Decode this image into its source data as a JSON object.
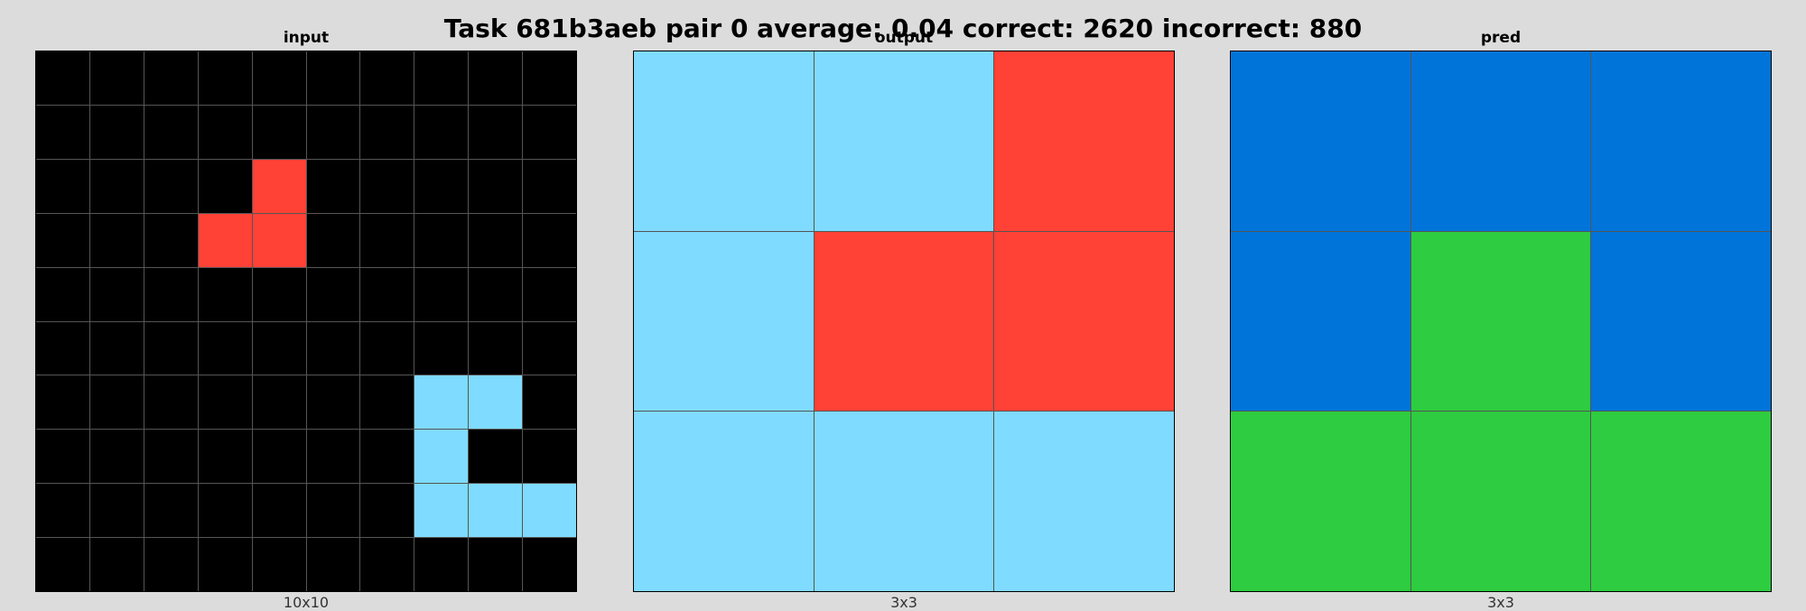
{
  "title": "Task 681b3aeb pair 0 average: 0.04 correct: 2620 incorrect: 880",
  "palette": {
    "0": "#000000",
    "1": "#0074d9",
    "2": "#ff4136",
    "3": "#2ecc40",
    "8": "#7fdbff"
  },
  "panels": [
    {
      "label": "input",
      "size_label": "10x10",
      "grid": [
        [
          0,
          0,
          0,
          0,
          0,
          0,
          0,
          0,
          0,
          0
        ],
        [
          0,
          0,
          0,
          0,
          0,
          0,
          0,
          0,
          0,
          0
        ],
        [
          0,
          0,
          0,
          0,
          2,
          0,
          0,
          0,
          0,
          0
        ],
        [
          0,
          0,
          0,
          2,
          2,
          0,
          0,
          0,
          0,
          0
        ],
        [
          0,
          0,
          0,
          0,
          0,
          0,
          0,
          0,
          0,
          0
        ],
        [
          0,
          0,
          0,
          0,
          0,
          0,
          0,
          0,
          0,
          0
        ],
        [
          0,
          0,
          0,
          0,
          0,
          0,
          0,
          8,
          8,
          0
        ],
        [
          0,
          0,
          0,
          0,
          0,
          0,
          0,
          8,
          0,
          0
        ],
        [
          0,
          0,
          0,
          0,
          0,
          0,
          0,
          8,
          8,
          8
        ],
        [
          0,
          0,
          0,
          0,
          0,
          0,
          0,
          0,
          0,
          0
        ]
      ]
    },
    {
      "label": "output",
      "size_label": "3x3",
      "grid": [
        [
          8,
          8,
          2
        ],
        [
          8,
          2,
          2
        ],
        [
          8,
          8,
          8
        ]
      ]
    },
    {
      "label": "pred",
      "size_label": "3x3",
      "grid": [
        [
          1,
          1,
          1
        ],
        [
          1,
          3,
          1
        ],
        [
          3,
          3,
          3
        ]
      ]
    }
  ]
}
